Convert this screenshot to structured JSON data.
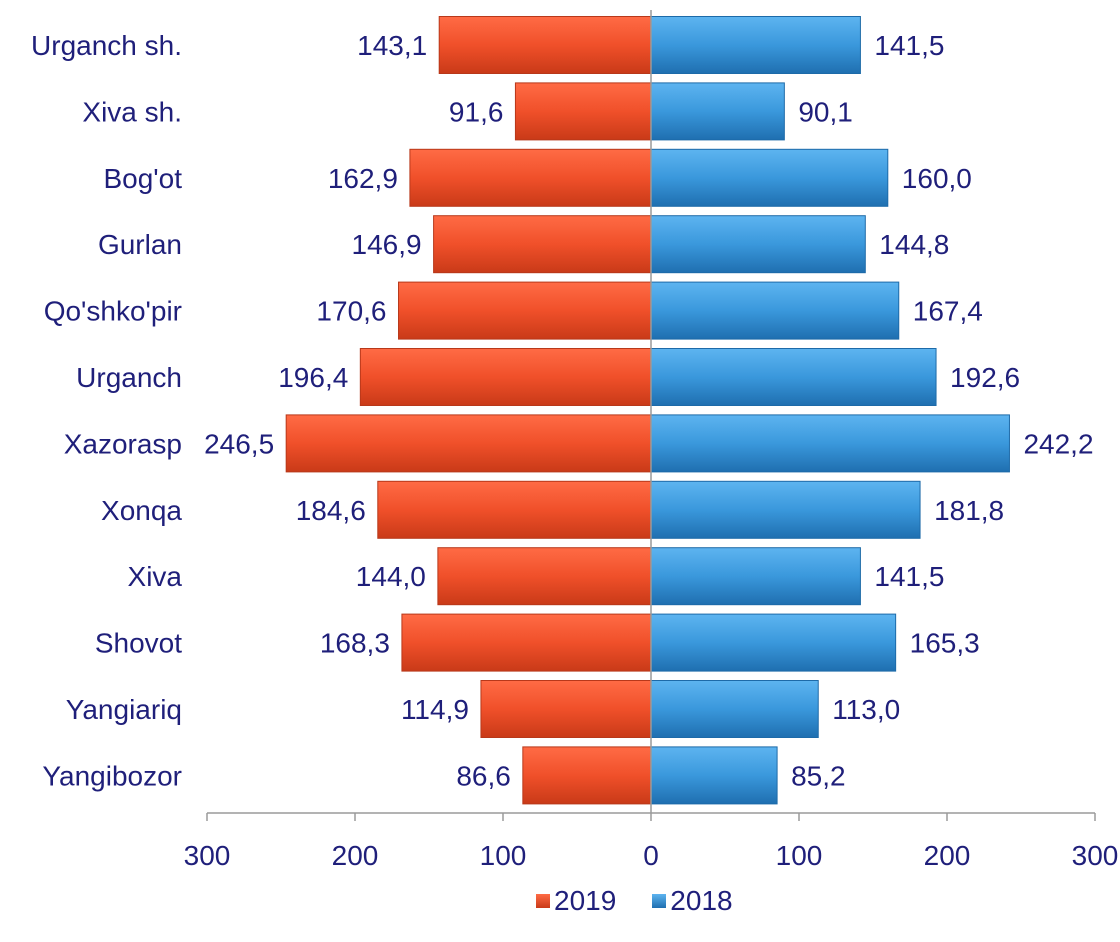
{
  "chart_data": {
    "type": "bar",
    "orientation": "horizontal",
    "layout": "back-to-back",
    "categories": [
      "Urganch sh.",
      "Xiva sh.",
      "Bog'ot",
      "Gurlan",
      "Qo'shko'pir",
      "Urganch",
      "Xazorasp",
      "Xonqa",
      "Xiva",
      "Shovot",
      "Yangiariq",
      "Yangibozor"
    ],
    "series": [
      {
        "name": "2019",
        "side": "left",
        "color": "#f0502a",
        "values": [
          143.1,
          91.6,
          162.9,
          146.9,
          170.6,
          196.4,
          246.5,
          184.6,
          144.0,
          168.3,
          114.9,
          86.6
        ],
        "labels": [
          "143,1",
          "91,6",
          "162,9",
          "146,9",
          "170,6",
          "196,4",
          "246,5",
          "184,6",
          "144,0",
          "168,3",
          "114,9",
          "86,6"
        ]
      },
      {
        "name": "2018",
        "side": "right",
        "color": "#3a98dc",
        "values": [
          141.5,
          90.1,
          160.0,
          144.8,
          167.4,
          192.6,
          242.2,
          181.8,
          141.5,
          165.3,
          113.0,
          85.2
        ],
        "labels": [
          "141,5",
          "90,1",
          "160,0",
          "144,8",
          "167,4",
          "192,6",
          "242,2",
          "181,8",
          "141,5",
          "165,3",
          "113,0",
          "85,2"
        ]
      }
    ],
    "xlim": [
      -300,
      300
    ],
    "x_ticks": [
      "300",
      "200",
      "100",
      "0",
      "100",
      "200",
      "300"
    ],
    "legend_position": "bottom",
    "grid": false
  },
  "legend": {
    "items": [
      {
        "label": "2019",
        "color": "#f0502a"
      },
      {
        "label": "2018",
        "color": "#3a98dc"
      }
    ]
  }
}
